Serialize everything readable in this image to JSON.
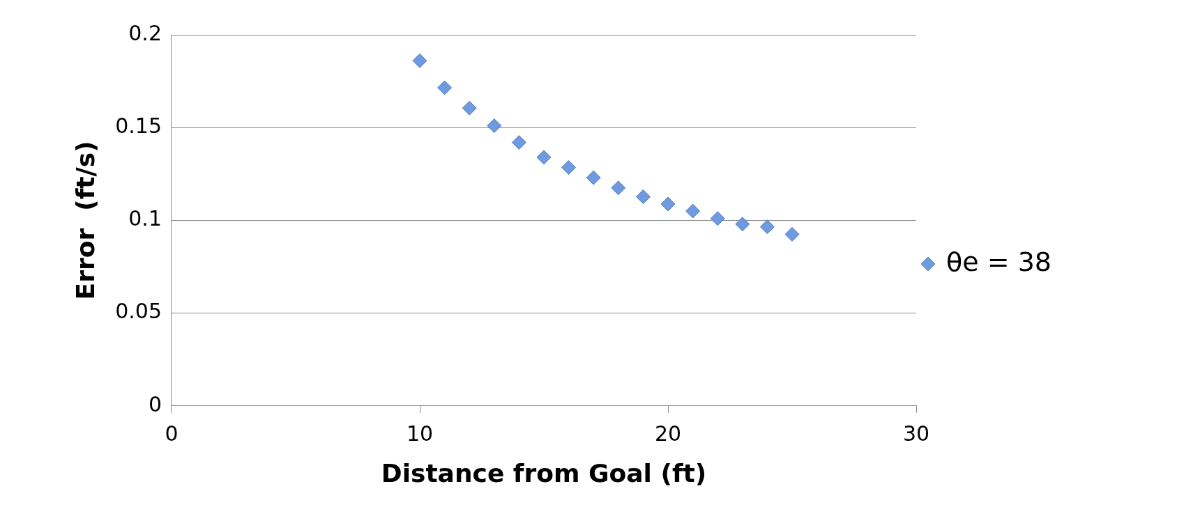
{
  "chart_data": {
    "type": "scatter",
    "xlabel": "Distance from Goal (ft)",
    "ylabel": "Error  (ft/s)",
    "xlim": [
      0,
      30
    ],
    "xticks": [
      0,
      10,
      20,
      30
    ],
    "ylim": [
      0,
      0.2
    ],
    "yticks": [
      0,
      0.05,
      0.1,
      0.15,
      0.2
    ],
    "grid": "y",
    "legend": "right",
    "marker": "diamond",
    "series": [
      {
        "name": "θe = 38",
        "color": "#6f9ae0",
        "x": [
          10,
          11,
          12,
          13,
          14,
          15,
          16,
          17,
          18,
          19,
          20,
          21,
          22,
          23,
          24,
          25
        ],
        "values": [
          0.186,
          0.1715,
          0.1605,
          0.151,
          0.142,
          0.134,
          0.1285,
          0.123,
          0.1175,
          0.1127,
          0.1088,
          0.105,
          0.101,
          0.098,
          0.0965,
          0.0925
        ]
      }
    ]
  }
}
